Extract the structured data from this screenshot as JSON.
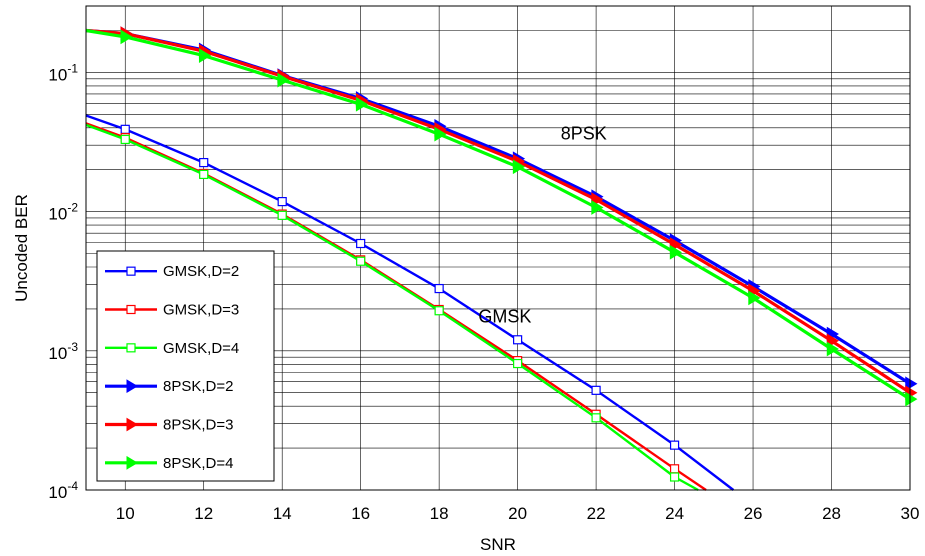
{
  "chart_data": {
    "type": "line",
    "title": "",
    "xlabel": "SNR",
    "ylabel": "Uncoded BER",
    "xlim": [
      9,
      30
    ],
    "ylim": [
      0.0001,
      0.3
    ],
    "yscale": "log",
    "grid": true,
    "xticks": [
      "10",
      "12",
      "14",
      "16",
      "18",
      "20",
      "22",
      "24",
      "26",
      "28",
      "30"
    ],
    "yticks": [
      {
        "value": 0.1,
        "base": "10",
        "exp": "-1"
      },
      {
        "value": 0.01,
        "base": "10",
        "exp": "-2"
      },
      {
        "value": 0.001,
        "base": "10",
        "exp": "-3"
      },
      {
        "value": 0.0001,
        "base": "10",
        "exp": "-4"
      }
    ],
    "legend_position": "lower-left",
    "annotations": [
      {
        "text": "8PSK",
        "x": 21.1,
        "y": 0.033
      },
      {
        "text": "GMSK",
        "x": 19.0,
        "y": 0.0016
      }
    ],
    "series": [
      {
        "name": "GMSK,D=2",
        "color": "#0000ff",
        "marker": "square",
        "x": [
          9,
          10,
          12,
          14,
          16,
          18,
          20,
          22,
          24,
          25.5
        ],
        "y": [
          0.049,
          0.039,
          0.0225,
          0.0118,
          0.0059,
          0.0028,
          0.0012,
          0.00052,
          0.00021,
          0.0001
        ]
      },
      {
        "name": "GMSK,D=3",
        "color": "#ff0000",
        "marker": "square",
        "x": [
          9,
          10,
          12,
          14,
          16,
          18,
          20,
          22,
          24,
          24.8
        ],
        "y": [
          0.043,
          0.034,
          0.0188,
          0.0096,
          0.0045,
          0.00198,
          0.00085,
          0.00035,
          0.000142,
          0.0001
        ]
      },
      {
        "name": "GMSK,D=4",
        "color": "#00ff00",
        "marker": "square",
        "x": [
          9,
          10,
          12,
          14,
          16,
          18,
          20,
          22,
          24,
          24.6
        ],
        "y": [
          0.042,
          0.033,
          0.0185,
          0.0094,
          0.0044,
          0.00194,
          0.00081,
          0.00033,
          0.000124,
          0.0001
        ]
      },
      {
        "name": "8PSK,D=2",
        "color": "#0000ff",
        "marker": "triangle-right",
        "x": [
          9,
          10,
          12,
          14,
          16,
          18,
          20,
          22,
          24,
          26,
          28,
          30
        ],
        "y": [
          0.2,
          0.19,
          0.145,
          0.095,
          0.065,
          0.041,
          0.024,
          0.0128,
          0.0062,
          0.0029,
          0.00132,
          0.00058
        ]
      },
      {
        "name": "8PSK,D=3",
        "color": "#ff0000",
        "marker": "triangle-right",
        "x": [
          9,
          10,
          12,
          14,
          16,
          18,
          20,
          22,
          24,
          26,
          28,
          30
        ],
        "y": [
          0.2,
          0.19,
          0.142,
          0.094,
          0.063,
          0.039,
          0.023,
          0.0122,
          0.0058,
          0.0027,
          0.00118,
          0.0005
        ]
      },
      {
        "name": "8PSK,D=4",
        "color": "#00ff00",
        "marker": "triangle-right",
        "x": [
          9,
          10,
          12,
          14,
          16,
          18,
          20,
          22,
          24,
          26,
          28,
          30
        ],
        "y": [
          0.2,
          0.18,
          0.132,
          0.088,
          0.059,
          0.036,
          0.021,
          0.0107,
          0.0051,
          0.0024,
          0.00103,
          0.00045
        ]
      }
    ]
  }
}
